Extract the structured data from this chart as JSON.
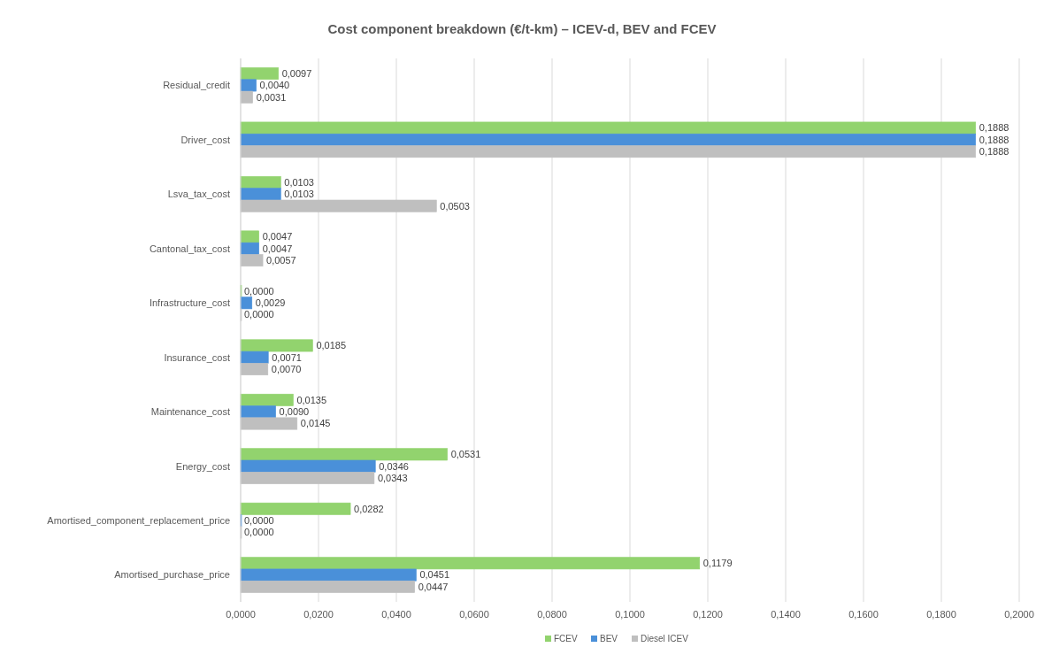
{
  "chart_data": {
    "type": "bar",
    "orientation": "horizontal",
    "title": "Cost component breakdown (€/t-km) – ICEV-d, BEV and FCEV",
    "categories": [
      "Residual_credit",
      "Driver_cost",
      "Lsva_tax_cost",
      "Cantonal_tax_cost",
      "Infrastructure_cost",
      "Insurance_cost",
      "Maintenance_cost",
      "Energy_cost",
      "Amortised_component_replacement_price",
      "Amortised_purchase_price"
    ],
    "series": [
      {
        "name": "FCEV",
        "color": "#92d36e",
        "values": [
          0.0097,
          0.1888,
          0.0103,
          0.0047,
          0.0,
          0.0185,
          0.0135,
          0.0531,
          0.0282,
          0.1179
        ],
        "value_labels": [
          "0,0097",
          "0,1888",
          "0,0103",
          "0,0047",
          "0,0000",
          "0,0185",
          "0,0135",
          "0,0531",
          "0,0282",
          "0,1179"
        ]
      },
      {
        "name": "BEV",
        "color": "#4a90d9",
        "values": [
          0.004,
          0.1888,
          0.0103,
          0.0047,
          0.0029,
          0.0071,
          0.009,
          0.0346,
          0.0,
          0.0451
        ],
        "value_labels": [
          "0,0040",
          "0,1888",
          "0,0103",
          "0,0047",
          "0,0029",
          "0,0071",
          "0,0090",
          "0,0346",
          "0,0000",
          "0,0451"
        ]
      },
      {
        "name": "Diesel ICEV",
        "color": "#bfbfbf",
        "values": [
          0.0031,
          0.1888,
          0.0503,
          0.0057,
          0.0,
          0.007,
          0.0145,
          0.0343,
          0.0,
          0.0447
        ],
        "value_labels": [
          "0,0031",
          "0,1888",
          "0,0503",
          "0,0057",
          "0,0000",
          "0,0070",
          "0,0145",
          "0,0343",
          "0,0000",
          "0,0447"
        ]
      }
    ],
    "xlim": [
      0,
      0.2
    ],
    "xticks": [
      {
        "value": 0,
        "label": "0,0000"
      },
      {
        "value": 0.02,
        "label": "0,0200"
      },
      {
        "value": 0.04,
        "label": "0,0400"
      },
      {
        "value": 0.06,
        "label": "0,0600"
      },
      {
        "value": 0.08,
        "label": "0,0800"
      },
      {
        "value": 0.1,
        "label": "0,1000"
      },
      {
        "value": 0.12,
        "label": "0,1200"
      },
      {
        "value": 0.14,
        "label": "0,1400"
      },
      {
        "value": 0.16,
        "label": "0,1600"
      },
      {
        "value": 0.18,
        "label": "0,1800"
      },
      {
        "value": 0.2,
        "label": "0,2000"
      }
    ],
    "grid": "x",
    "legend": "bottom"
  }
}
